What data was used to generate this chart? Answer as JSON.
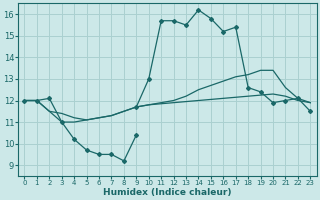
{
  "xlabel": "Humidex (Indice chaleur)",
  "xlim": [
    -0.5,
    23.5
  ],
  "ylim": [
    8.5,
    16.5
  ],
  "yticks": [
    9,
    10,
    11,
    12,
    13,
    14,
    15,
    16
  ],
  "xticks": [
    0,
    1,
    2,
    3,
    4,
    5,
    6,
    7,
    8,
    9,
    10,
    11,
    12,
    13,
    14,
    15,
    16,
    17,
    18,
    19,
    20,
    21,
    22,
    23
  ],
  "bg_color": "#cce8e8",
  "grid_color": "#aad0d0",
  "line_color": "#1a6868",
  "line1_x": [
    0,
    1,
    2,
    3,
    4,
    5,
    6,
    7,
    8,
    9
  ],
  "line1_y": [
    12.0,
    12.0,
    12.1,
    11.0,
    10.2,
    9.7,
    9.5,
    9.5,
    9.2,
    10.4
  ],
  "line2_x": [
    9,
    10,
    11,
    12,
    13,
    14,
    15,
    16,
    17,
    18,
    19,
    20,
    21,
    22,
    23
  ],
  "line2_y": [
    11.7,
    13.0,
    15.7,
    15.7,
    15.5,
    16.2,
    15.8,
    15.2,
    15.4,
    12.6,
    12.4,
    11.9,
    12.0,
    12.1,
    11.5
  ],
  "line3_x": [
    0,
    1,
    2,
    3,
    4,
    5,
    6,
    7,
    8,
    9,
    10,
    11,
    12,
    13,
    14,
    15,
    16,
    17,
    18,
    19,
    20,
    21,
    22,
    23
  ],
  "line3_y": [
    12.0,
    12.0,
    11.5,
    11.0,
    11.0,
    11.1,
    11.2,
    11.3,
    11.5,
    11.7,
    11.8,
    11.9,
    12.0,
    12.2,
    12.5,
    12.7,
    12.9,
    13.1,
    13.2,
    13.4,
    13.4,
    12.6,
    12.1,
    11.9
  ],
  "line4_x": [
    0,
    1,
    2,
    3,
    4,
    5,
    6,
    7,
    8,
    9,
    10,
    11,
    12,
    13,
    14,
    15,
    16,
    17,
    18,
    19,
    20,
    21,
    22,
    23
  ],
  "line4_y": [
    12.0,
    12.0,
    11.5,
    11.4,
    11.2,
    11.1,
    11.2,
    11.3,
    11.5,
    11.7,
    11.8,
    11.85,
    11.9,
    11.95,
    12.0,
    12.05,
    12.1,
    12.15,
    12.2,
    12.25,
    12.3,
    12.2,
    12.0,
    11.9
  ]
}
